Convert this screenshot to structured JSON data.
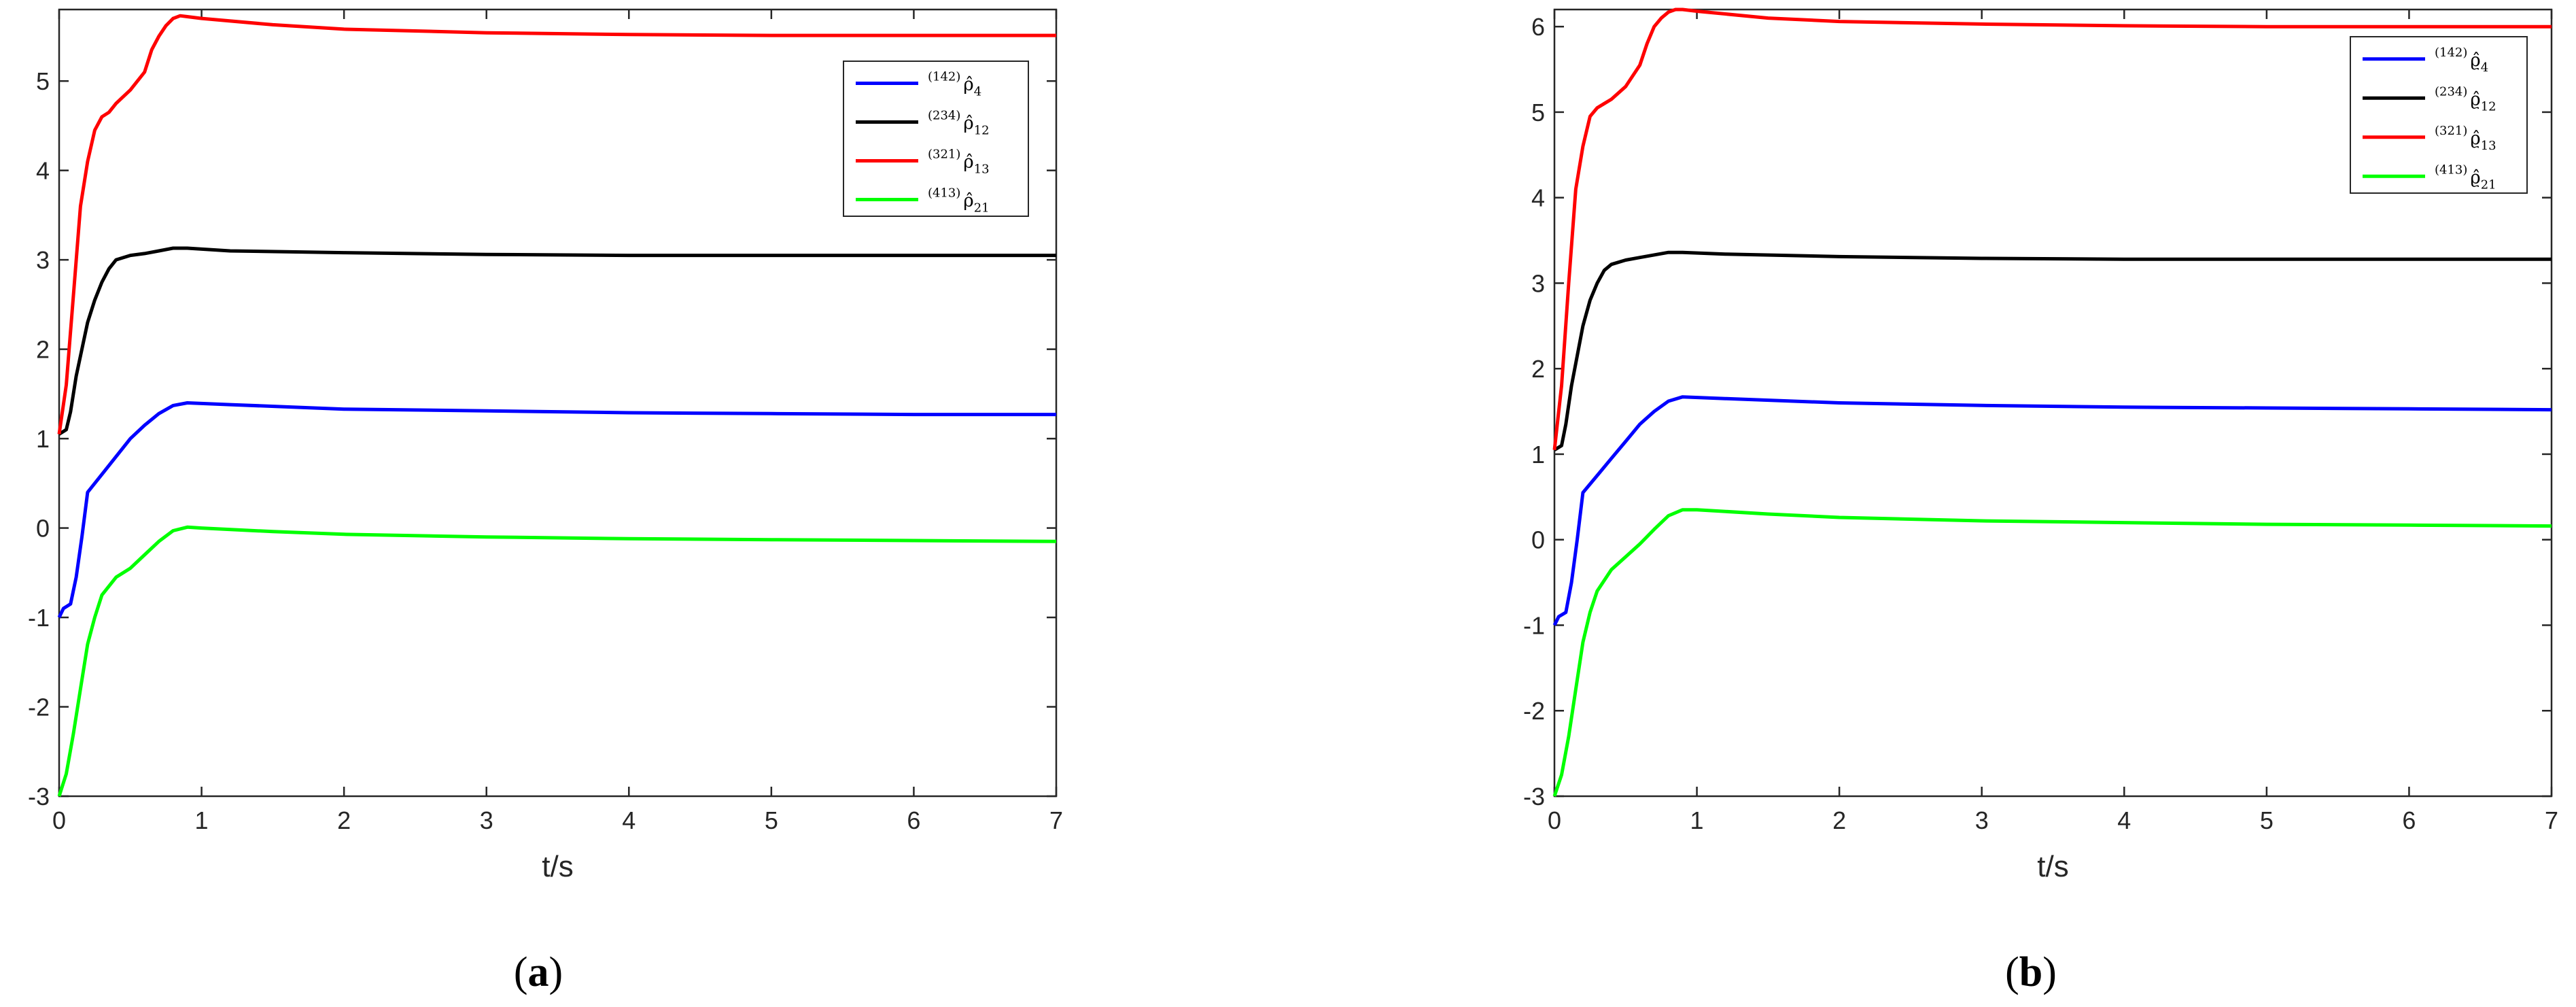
{
  "chart_data": [
    {
      "type": "line",
      "panel_label": "(a)",
      "xlabel": "t/s",
      "ylabel": "",
      "xlim": [
        0,
        7
      ],
      "ylim": [
        -3,
        5.8
      ],
      "xticks": [
        "0",
        "1",
        "2",
        "3",
        "4",
        "5",
        "6",
        "7"
      ],
      "yticks": [
        "-3",
        "-2",
        "-1",
        "0",
        "1",
        "2",
        "3",
        "4",
        "5"
      ],
      "legend_position": "top-right",
      "series": [
        {
          "name": "(142) ρ̂4",
          "sup": "(142)",
          "sym": "ρ̂",
          "sub": "4",
          "color": "#0000ff",
          "x": [
            0,
            0.03,
            0.08,
            0.12,
            0.16,
            0.2,
            0.3,
            0.4,
            0.5,
            0.6,
            0.7,
            0.8,
            0.9,
            1.2,
            2,
            3,
            4,
            5,
            6,
            7
          ],
          "y": [
            -1.0,
            -0.9,
            -0.85,
            -0.55,
            -0.1,
            0.4,
            0.6,
            0.8,
            1.0,
            1.15,
            1.28,
            1.37,
            1.4,
            1.38,
            1.33,
            1.31,
            1.29,
            1.28,
            1.27,
            1.27
          ]
        },
        {
          "name": "(234) ρ̂12",
          "sup": "(234)",
          "sym": "ρ̂",
          "sub": "12",
          "color": "#000000",
          "x": [
            0,
            0.05,
            0.08,
            0.12,
            0.16,
            0.2,
            0.25,
            0.3,
            0.35,
            0.4,
            0.5,
            0.6,
            0.7,
            0.8,
            0.9,
            1.2,
            2,
            3,
            4,
            5,
            6,
            7
          ],
          "y": [
            1.05,
            1.1,
            1.3,
            1.7,
            2.0,
            2.3,
            2.55,
            2.75,
            2.9,
            3.0,
            3.05,
            3.07,
            3.1,
            3.13,
            3.13,
            3.1,
            3.08,
            3.06,
            3.05,
            3.05,
            3.05,
            3.05
          ],
          "note": ""
        },
        {
          "name": "(321) ρ̂13",
          "sup": "(321)",
          "sym": "ρ̂",
          "sub": "13",
          "color": "#ff0000",
          "x": [
            0,
            0.05,
            0.1,
            0.15,
            0.2,
            0.25,
            0.3,
            0.35,
            0.4,
            0.5,
            0.6,
            0.65,
            0.7,
            0.75,
            0.8,
            0.85,
            0.9,
            1.0,
            1.5,
            2,
            3,
            4,
            5,
            6,
            7
          ],
          "y": [
            1.05,
            1.6,
            2.6,
            3.6,
            4.1,
            4.45,
            4.6,
            4.65,
            4.75,
            4.9,
            5.1,
            5.35,
            5.5,
            5.62,
            5.7,
            5.73,
            5.72,
            5.7,
            5.63,
            5.58,
            5.54,
            5.52,
            5.51,
            5.51,
            5.51
          ]
        },
        {
          "name": "(413) ρ̂21",
          "sup": "(413)",
          "sym": "ρ̂",
          "sub": "21",
          "color": "#00ff00",
          "x": [
            0,
            0.05,
            0.1,
            0.15,
            0.2,
            0.25,
            0.3,
            0.4,
            0.5,
            0.6,
            0.7,
            0.8,
            0.9,
            1.0,
            1.5,
            2,
            3,
            4,
            5,
            6,
            7
          ],
          "y": [
            -3.0,
            -2.75,
            -2.3,
            -1.8,
            -1.3,
            -1.0,
            -0.75,
            -0.55,
            -0.45,
            -0.3,
            -0.15,
            -0.03,
            0.01,
            0.0,
            -0.04,
            -0.07,
            -0.1,
            -0.12,
            -0.13,
            -0.14,
            -0.15
          ]
        }
      ]
    },
    {
      "type": "line",
      "panel_label": "(b)",
      "xlabel": "t/s",
      "ylabel": "",
      "xlim": [
        0,
        7
      ],
      "ylim": [
        -3,
        6.2
      ],
      "xticks": [
        "0",
        "1",
        "2",
        "3",
        "4",
        "5",
        "6",
        "7"
      ],
      "yticks": [
        "-3",
        "-2",
        "-1",
        "0",
        "1",
        "2",
        "3",
        "4",
        "5",
        "6"
      ],
      "legend_position": "top-right",
      "series": [
        {
          "name": "(142) ϱ̂4",
          "sup": "(142)",
          "sym": "ϱ̂",
          "sub": "4",
          "color": "#0000ff",
          "x": [
            0,
            0.03,
            0.08,
            0.12,
            0.16,
            0.2,
            0.3,
            0.4,
            0.5,
            0.6,
            0.7,
            0.8,
            0.9,
            1.2,
            2,
            3,
            4,
            5,
            6,
            7
          ],
          "y": [
            -1.0,
            -0.9,
            -0.85,
            -0.5,
            0.0,
            0.55,
            0.75,
            0.95,
            1.15,
            1.35,
            1.5,
            1.62,
            1.67,
            1.65,
            1.6,
            1.57,
            1.55,
            1.54,
            1.53,
            1.52
          ]
        },
        {
          "name": "(234) ϱ̂12",
          "sup": "(234)",
          "sym": "ϱ̂",
          "sub": "12",
          "color": "#000000",
          "x": [
            0,
            0.05,
            0.08,
            0.12,
            0.16,
            0.2,
            0.25,
            0.3,
            0.35,
            0.4,
            0.5,
            0.6,
            0.7,
            0.8,
            0.9,
            1.2,
            2,
            3,
            4,
            5,
            6,
            7
          ],
          "y": [
            1.05,
            1.1,
            1.35,
            1.8,
            2.15,
            2.5,
            2.8,
            3.0,
            3.15,
            3.22,
            3.27,
            3.3,
            3.33,
            3.36,
            3.36,
            3.34,
            3.31,
            3.29,
            3.28,
            3.28,
            3.28,
            3.28
          ]
        },
        {
          "name": "(321) ϱ̂13",
          "sup": "(321)",
          "sym": "ϱ̂",
          "sub": "13",
          "color": "#ff0000",
          "x": [
            0,
            0.05,
            0.1,
            0.15,
            0.2,
            0.25,
            0.3,
            0.35,
            0.4,
            0.5,
            0.6,
            0.65,
            0.7,
            0.75,
            0.8,
            0.85,
            0.9,
            1.0,
            1.5,
            2,
            3,
            4,
            5,
            6,
            7
          ],
          "y": [
            1.05,
            1.8,
            3.0,
            4.1,
            4.6,
            4.95,
            5.05,
            5.1,
            5.15,
            5.3,
            5.55,
            5.8,
            6.0,
            6.1,
            6.17,
            6.2,
            6.2,
            6.18,
            6.1,
            6.06,
            6.03,
            6.01,
            6.0,
            6.0,
            6.0
          ]
        },
        {
          "name": "(413) ϱ̂21",
          "sup": "(413)",
          "sym": "ϱ̂",
          "sub": "21",
          "color": "#00ff00",
          "x": [
            0,
            0.05,
            0.1,
            0.15,
            0.2,
            0.25,
            0.3,
            0.4,
            0.5,
            0.6,
            0.7,
            0.8,
            0.9,
            1.0,
            1.5,
            2,
            3,
            4,
            5,
            6,
            7
          ],
          "y": [
            -3.0,
            -2.75,
            -2.3,
            -1.75,
            -1.2,
            -0.85,
            -0.6,
            -0.35,
            -0.2,
            -0.05,
            0.12,
            0.28,
            0.35,
            0.35,
            0.3,
            0.26,
            0.22,
            0.2,
            0.18,
            0.17,
            0.16
          ]
        }
      ]
    }
  ]
}
